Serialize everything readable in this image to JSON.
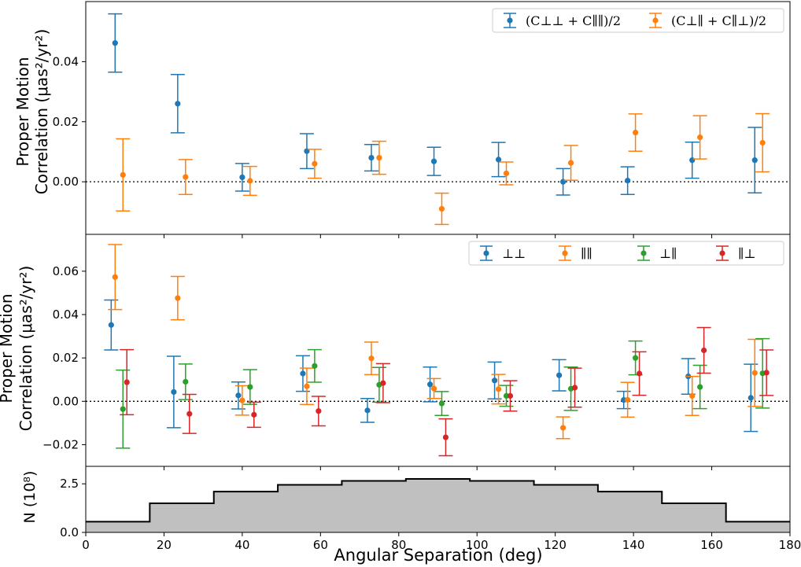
{
  "figure": {
    "xlabel": "Angular Separation (deg)",
    "xlim": [
      0,
      180
    ],
    "xticks": [
      "0",
      "20",
      "40",
      "60",
      "80",
      "100",
      "120",
      "140",
      "160",
      "180"
    ]
  },
  "chart_data": [
    {
      "type": "scatter",
      "panel": "top",
      "ylabel_line1": "Proper Motion",
      "ylabel_line2": "Correlation (μas²/yr²)",
      "ylim": [
        -0.0175,
        0.06
      ],
      "yticks": [
        "0.00",
        "0.02",
        "0.04"
      ],
      "legend_position": "top-right",
      "zero_line": true,
      "series": [
        {
          "name": "(C⊥⊥ + C∥∥)/2",
          "color": "#1f77b4",
          "x": [
            7.5,
            23.5,
            40,
            56.5,
            73,
            89,
            105.5,
            122,
            138.5,
            155,
            171
          ],
          "y": [
            0.0462,
            0.026,
            0.0015,
            0.0102,
            0.008,
            0.0068,
            0.0074,
            0.0,
            0.0004,
            0.0072,
            0.0072
          ],
          "err": [
            0.0097,
            0.0097,
            0.0046,
            0.0058,
            0.0044,
            0.0047,
            0.0057,
            0.0044,
            0.0046,
            0.006,
            0.0109
          ]
        },
        {
          "name": "(C⊥∥ + C∥⊥)/2",
          "color": "#ff7f0e",
          "x": [
            9.5,
            25.5,
            42,
            58.5,
            75,
            91,
            107.5,
            124,
            140.5,
            157,
            173
          ],
          "y": [
            0.0023,
            0.0016,
            0.0003,
            0.006,
            0.008,
            -0.009,
            0.0028,
            0.0063,
            0.0164,
            0.0148,
            0.013
          ],
          "err": [
            0.012,
            0.0058,
            0.0048,
            0.0048,
            0.0055,
            0.0052,
            0.0038,
            0.0058,
            0.0062,
            0.0072,
            0.0097
          ]
        }
      ]
    },
    {
      "type": "scatter",
      "panel": "middle",
      "ylabel_line1": "Proper Motion",
      "ylabel_line2": "Correlation (μas²/yr²)",
      "ylim": [
        -0.03,
        0.077
      ],
      "yticks": [
        "−0.02",
        "0.00",
        "0.02",
        "0.04",
        "0.06"
      ],
      "legend_position": "top-right",
      "zero_line": true,
      "series": [
        {
          "name": "⊥⊥",
          "color": "#1f77b4",
          "x": [
            6.5,
            22.5,
            39,
            55.5,
            72,
            88,
            104.5,
            121,
            137.5,
            154,
            170
          ],
          "y": [
            0.0352,
            0.0043,
            0.0027,
            0.0128,
            -0.0042,
            0.0078,
            0.0096,
            0.012,
            0.0006,
            0.0115,
            0.0016
          ],
          "err": [
            0.0115,
            0.0165,
            0.0062,
            0.0082,
            0.0055,
            0.008,
            0.0085,
            0.0072,
            0.004,
            0.0082,
            0.0155
          ]
        },
        {
          "name": "∥∥",
          "color": "#ff7f0e",
          "x": [
            7.5,
            23.5,
            40,
            56.5,
            73,
            89,
            105.5,
            122,
            138.5,
            155,
            171
          ],
          "y": [
            0.0573,
            0.0476,
            0.0004,
            0.0069,
            0.0198,
            0.0059,
            0.0056,
            -0.0122,
            0.0007,
            0.0025,
            0.0131
          ],
          "err": [
            0.015,
            0.01,
            0.0068,
            0.0084,
            0.0075,
            0.0046,
            0.0068,
            0.005,
            0.008,
            0.009,
            0.0155
          ]
        },
        {
          "name": "⊥∥",
          "color": "#2ca02c",
          "x": [
            9.5,
            25.5,
            42,
            58.5,
            75,
            91,
            107.5,
            124,
            140.5,
            157,
            173
          ],
          "y": [
            -0.0036,
            0.009,
            0.0066,
            0.0163,
            0.0076,
            -0.001,
            0.0025,
            0.0058,
            0.02,
            0.0066,
            0.0129
          ],
          "err": [
            0.018,
            0.0082,
            0.008,
            0.0075,
            0.008,
            0.0055,
            0.0048,
            0.01,
            0.0078,
            0.01,
            0.016
          ]
        },
        {
          "name": "∥⊥",
          "color": "#d62728",
          "x": [
            10.5,
            26.5,
            43,
            59.5,
            76,
            92,
            108.5,
            125,
            141.5,
            158,
            174
          ],
          "y": [
            0.0088,
            -0.0058,
            -0.0062,
            -0.0045,
            0.0084,
            -0.0166,
            0.0025,
            0.0063,
            0.0128,
            0.0235,
            0.0132
          ],
          "err": [
            0.015,
            0.009,
            0.0058,
            0.0068,
            0.009,
            0.0085,
            0.007,
            0.009,
            0.01,
            0.0105,
            0.0105
          ]
        }
      ]
    },
    {
      "type": "area",
      "panel": "bottom",
      "ylabel": "N (10⁸)",
      "ylim": [
        0,
        3.4
      ],
      "yticks": [
        "0.0",
        "2.5"
      ],
      "color": "#c0c0c0",
      "bin_edges": [
        0,
        16.36,
        32.73,
        49.09,
        65.45,
        81.82,
        98.18,
        114.55,
        130.91,
        147.27,
        163.64,
        180
      ],
      "counts": [
        0.55,
        1.5,
        2.1,
        2.45,
        2.65,
        2.75,
        2.65,
        2.45,
        2.1,
        1.5,
        0.55
      ]
    }
  ]
}
